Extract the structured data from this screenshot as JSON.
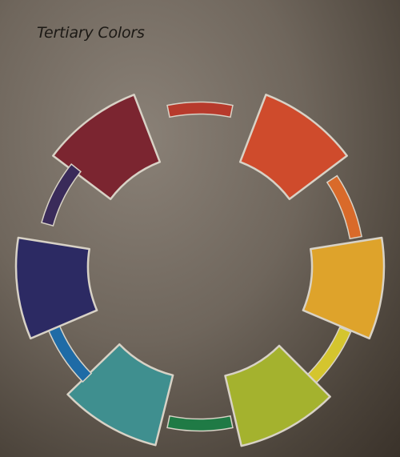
{
  "title": "Tertiary Colors",
  "wheel": {
    "segments": [
      {
        "id": "red-violet",
        "kind": "large",
        "color": "#7b2530"
      },
      {
        "id": "red",
        "kind": "thin",
        "color": "#b73a2c"
      },
      {
        "id": "red-orange",
        "kind": "large",
        "color": "#cf4b2c"
      },
      {
        "id": "orange",
        "kind": "thin",
        "color": "#d96a2a"
      },
      {
        "id": "yellow-orange",
        "kind": "large",
        "color": "#dea32b"
      },
      {
        "id": "yellow",
        "kind": "thin",
        "color": "#d4c52e"
      },
      {
        "id": "yellow-green",
        "kind": "large",
        "color": "#a4b22e"
      },
      {
        "id": "green",
        "kind": "thin",
        "color": "#1f7a45"
      },
      {
        "id": "blue-green",
        "kind": "large",
        "color": "#3f8f8f"
      },
      {
        "id": "blue",
        "kind": "thin",
        "color": "#1f6ba6"
      },
      {
        "id": "blue-violet",
        "kind": "large",
        "color": "#2c2a63"
      },
      {
        "id": "violet",
        "kind": "thin",
        "color": "#3a2b5a"
      }
    ]
  }
}
